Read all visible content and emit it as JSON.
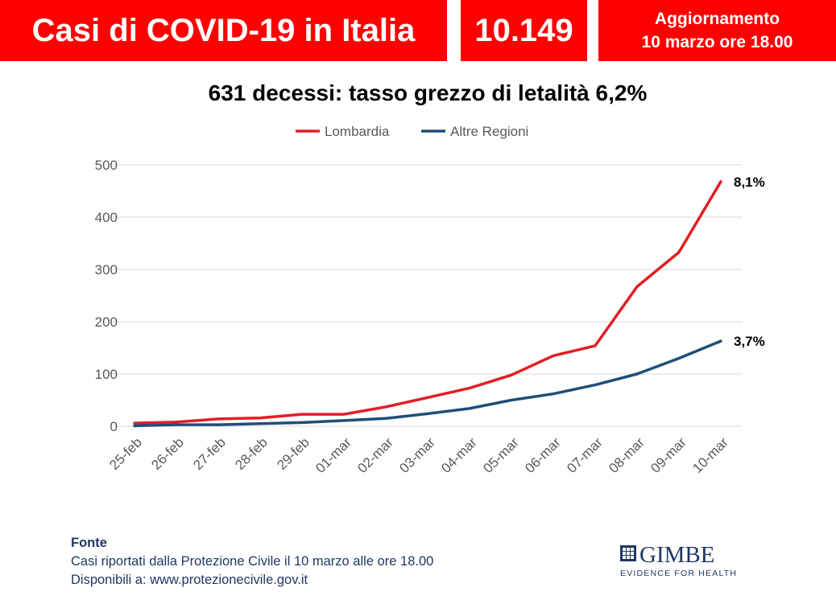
{
  "header": {
    "title": "Casi di COVID-19 in Italia",
    "count": "10.149",
    "update_line1": "Aggiornamento",
    "update_line2": "10 marzo ore 18.00"
  },
  "colors": {
    "header_bg": "#ff0000",
    "lombardia": "#e31e24",
    "altre": "#1f4e79",
    "source_text": "#1f3864"
  },
  "chart_data": {
    "type": "line",
    "title": "631 decessi: tasso grezzo di letalità 6,2%",
    "categories": [
      "25-feb",
      "26-feb",
      "27-feb",
      "28-feb",
      "29-feb",
      "01-mar",
      "02-mar",
      "03-mar",
      "04-mar",
      "05-mar",
      "06-mar",
      "07-mar",
      "08-mar",
      "09-mar",
      "10-mar"
    ],
    "series": [
      {
        "name": "Lombardia",
        "values": [
          6,
          8,
          14,
          16,
          23,
          23,
          37,
          55,
          73,
          98,
          135,
          154,
          267,
          333,
          468
        ],
        "end_label": "8,1%"
      },
      {
        "name": "Altre Regioni",
        "values": [
          1,
          3,
          3,
          5,
          7,
          11,
          15,
          24,
          34,
          50,
          62,
          79,
          100,
          130,
          163
        ],
        "end_label": "3,7%"
      }
    ],
    "yticks": [
      0,
      100,
      200,
      300,
      400,
      500
    ],
    "ylim": [
      0,
      500
    ],
    "grid": true,
    "legend": "top-center",
    "xlabel": "",
    "ylabel": ""
  },
  "source": {
    "heading": "Fonte",
    "line1": "Casi riportati dalla Protezione Civile  il 10  marzo alle ore 18.00",
    "line2": "Disponibili a: www.protezionecivile.gov.it"
  },
  "logo": {
    "name": "GIMBE",
    "tagline": "EVIDENCE FOR HEALTH"
  }
}
